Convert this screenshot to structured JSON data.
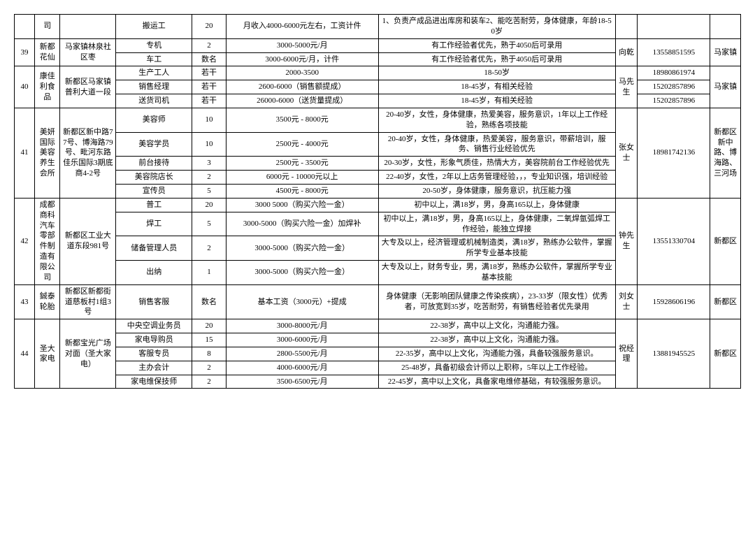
{
  "rows": [
    {
      "idx": {
        "text": "",
        "rs": 1
      },
      "company": {
        "text": "司",
        "rs": 1
      },
      "addr": {
        "text": "",
        "rs": 1
      },
      "role": "搬运工",
      "count": "20",
      "salary": "月收入4000-6000元左右，工资计件",
      "req": "1、负责产成品进出库房和装车2、能吃苦耐劳，身体健康，年龄18-50岁",
      "contact": {
        "text": "",
        "rs": 1
      },
      "phone": {
        "text": "",
        "rs": 1
      },
      "loc": {
        "text": "",
        "rs": 1
      }
    },
    {
      "idx": {
        "text": "39",
        "rs": 2
      },
      "company": {
        "text": "新都花仙",
        "rs": 2
      },
      "addr": {
        "text": "马家镇林泉社区枣",
        "rs": 2
      },
      "role": "专机",
      "count": "2",
      "salary": "3000-5000元/月",
      "req": "有工作经验者优先，熟于4050后可录用",
      "contact": {
        "text": "向乾",
        "rs": 2
      },
      "phone": {
        "text": "13558851595",
        "rs": 2
      },
      "loc": {
        "text": "马家镇",
        "rs": 2
      }
    },
    {
      "role": "车工",
      "count": "数名",
      "salary": "3000-6000元/月，计件",
      "req": "有工作经验者优先，熟于4050后可录用"
    },
    {
      "idx": {
        "text": "40",
        "rs": 3
      },
      "company": {
        "text": "康佳利食品",
        "rs": 3
      },
      "addr": {
        "text": "新都区马家镇普利大道一段",
        "rs": 3
      },
      "role": "生产工人",
      "count": "若干",
      "salary": "2000-3500",
      "req": "18-50岁",
      "contact": {
        "text": "马先生",
        "rs": 3
      },
      "phone": {
        "text": "18980861974",
        "rs": 1
      },
      "loc": {
        "text": "马家镇",
        "rs": 3
      }
    },
    {
      "role": "销售经理",
      "count": "若干",
      "salary": "2600-6000（销售额提成）",
      "req": "18-45岁，有相关经验",
      "phone": {
        "text": "15202857896",
        "rs": 1
      }
    },
    {
      "role": "送货司机",
      "count": "若干",
      "salary": "26000-6000（送货量提成）",
      "req": "18-45岁，有相关经验",
      "phone": {
        "text": "15202857896",
        "rs": 1
      }
    },
    {
      "idx": {
        "text": "41",
        "rs": 5
      },
      "company": {
        "text": "美妍国际美容养生会所",
        "rs": 5
      },
      "addr": {
        "text": "新都区新中路77号、博海路79号、毗河东路佳乐国际3期底商4-2号",
        "rs": 5
      },
      "role": "美容师",
      "count": "10",
      "salary": "3500元 - 8000元",
      "req": "20-40岁，女性，身体健康，热爱美容，服务意识，1年以上工作经验，熟练各项技能",
      "contact": {
        "text": "张女士",
        "rs": 5
      },
      "phone": {
        "text": "18981742136",
        "rs": 5
      },
      "loc": {
        "text": "新都区新中路、博海路、三河场",
        "rs": 5
      }
    },
    {
      "role": "美容学员",
      "count": "10",
      "salary": "2500元 - 4000元",
      "req": "20-40岁，女性，身体健康，热爱美容，服务意识，带薪培训，服务、销售行业经验优先"
    },
    {
      "role": "前台接待",
      "count": "3",
      "salary": "2500元 - 3500元",
      "req": "20-30岁，女性，形象气质佳，热情大方，美容院前台工作经验优先"
    },
    {
      "role": "美容院店长",
      "count": "2",
      "salary": "6000元 - 10000元以上",
      "req": "22-40岁，女性，2年以上店务管理经验，，，专业知识强，培训经验"
    },
    {
      "role": "宣传员",
      "count": "5",
      "salary": "4500元 - 8000元",
      "req": "20-50岁，身体健康，服务意识，抗压能力强"
    },
    {
      "idx": {
        "text": "42",
        "rs": 4
      },
      "company": {
        "text": "成都商科汽车零部件制造有限公司",
        "rs": 4
      },
      "addr": {
        "text": "新都区工业大道东段981号",
        "rs": 4
      },
      "role": "普工",
      "count": "20",
      "salary": "3000 5000（购买六险一金）",
      "req": "初中以上，满18岁，男，身高165以上，身体健康",
      "contact": {
        "text": "钟先生",
        "rs": 4
      },
      "phone": {
        "text": "13551330704",
        "rs": 4
      },
      "loc": {
        "text": "新都区",
        "rs": 4
      }
    },
    {
      "role": "焊工",
      "count": "5",
      "salary": "3000-5000（购买六险一金）加焊补",
      "req": "初中以上，满18岁，男，身高165以上，身体健康，二氧焊氩弧焊工作经验，能独立焊接"
    },
    {
      "role": "储备管理人员",
      "count": "2",
      "salary": "3000-5000（购买六险一金）",
      "req": "大专及以上，经济管理或机械制造类，满18岁，熟练办公软件，掌握所学专业基本技能"
    },
    {
      "role": "出纳",
      "count": "1",
      "salary": "3000-5000（购买六险一金）",
      "req": "大专及以上，财务专业，男，满18岁，熟练办公软件，掌握所学专业基本技能"
    },
    {
      "idx": {
        "text": "43",
        "rs": 1
      },
      "company": {
        "text": "鋮泰轮胎",
        "rs": 1
      },
      "addr": {
        "text": "新都区新都街道慈板村1组3号",
        "rs": 1
      },
      "role": "销售客服",
      "count": "数名",
      "salary": "基本工资（3000元）+提成",
      "req": "身体健康（无影响团队健康之传染疾病），23-33岁（限女性）优秀者，可放宽到35岁，吃苦耐劳，有销售经验者优先录用",
      "contact": {
        "text": "刘女士",
        "rs": 1
      },
      "phone": {
        "text": "15928606196",
        "rs": 1
      },
      "loc": {
        "text": "新都区",
        "rs": 1
      }
    },
    {
      "idx": {
        "text": "44",
        "rs": 5
      },
      "company": {
        "text": "圣大家电",
        "rs": 5
      },
      "addr": {
        "text": "新都宝光广场对面（圣大家电）",
        "rs": 5
      },
      "role": "中央空调业务员",
      "count": "20",
      "salary": "3000-8000元/月",
      "req": "22-38岁，高中以上文化，沟通能力强。",
      "contact": {
        "text": "祝经理",
        "rs": 5
      },
      "phone": {
        "text": "13881945525",
        "rs": 5
      },
      "loc": {
        "text": "新都区",
        "rs": 5
      }
    },
    {
      "role": "家电导购员",
      "count": "15",
      "salary": "3000-6000元/月",
      "req": "22-38岁，高中以上文化，沟通能力强。"
    },
    {
      "role": "客服专员",
      "count": "8",
      "salary": "2800-5500元/月",
      "req": "22-35岁，高中以上文化，沟通能力强，具备较强服务意识。"
    },
    {
      "role": "主办会计",
      "count": "2",
      "salary": "4000-6000元/月",
      "req": "25-48岁，具备初级会计师以上职称，5年以上工作经验。"
    },
    {
      "role": "家电维保技师",
      "count": "2",
      "salary": "3500-6500元/月",
      "req": "22-45岁，高中以上文化，具备家电维修基础，有较强服务意识。"
    }
  ]
}
